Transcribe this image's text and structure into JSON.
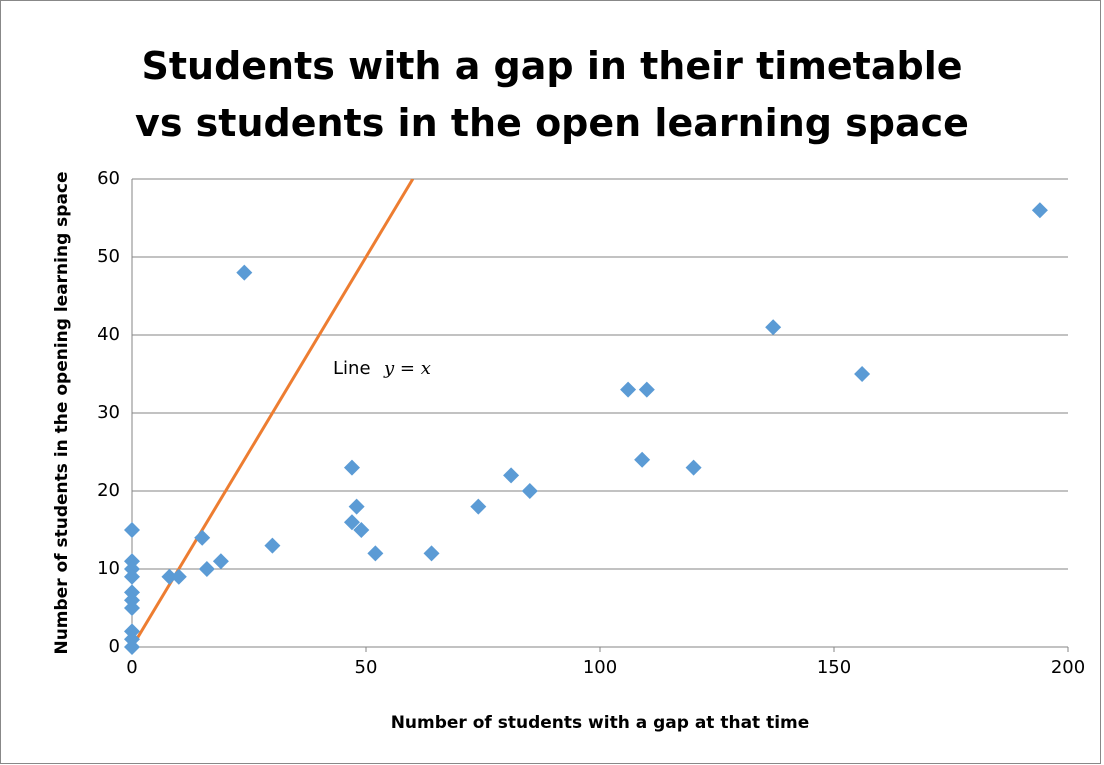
{
  "chart_data": {
    "type": "scatter",
    "title": "Students with a gap in their timetable vs students in the open learning space",
    "x_label": "Number of students with a gap at that time",
    "y_label": "Number of students in the opening learning space",
    "annotation": "Line",
    "equation": "y = x",
    "xlim": [
      0,
      200
    ],
    "xticks": [
      0,
      50,
      100,
      150,
      200
    ],
    "ylim": [
      0,
      60
    ],
    "yticks": [
      0,
      10,
      20,
      30,
      40,
      50,
      60
    ],
    "grid": true,
    "series": [
      {
        "type": "scatter",
        "color": "#5b9bd5",
        "x": [
          0,
          0,
          0,
          0,
          0,
          0,
          0,
          0,
          0,
          0,
          8,
          10,
          15,
          16,
          19,
          24,
          30,
          47,
          47,
          48,
          49,
          52,
          64,
          74,
          81,
          85,
          106,
          110,
          109,
          120,
          137,
          156,
          194
        ],
        "values": [
          15,
          11,
          10,
          9,
          7,
          6,
          5,
          2,
          1,
          0,
          9,
          9,
          14,
          10,
          11,
          48,
          13,
          23,
          16,
          18,
          15,
          12,
          12,
          18,
          22,
          20,
          33,
          33,
          24,
          23,
          41,
          35,
          56
        ]
      },
      {
        "type": "line",
        "color": "#ed7d31",
        "x": [
          0,
          60
        ],
        "values": [
          0,
          60
        ]
      }
    ]
  }
}
